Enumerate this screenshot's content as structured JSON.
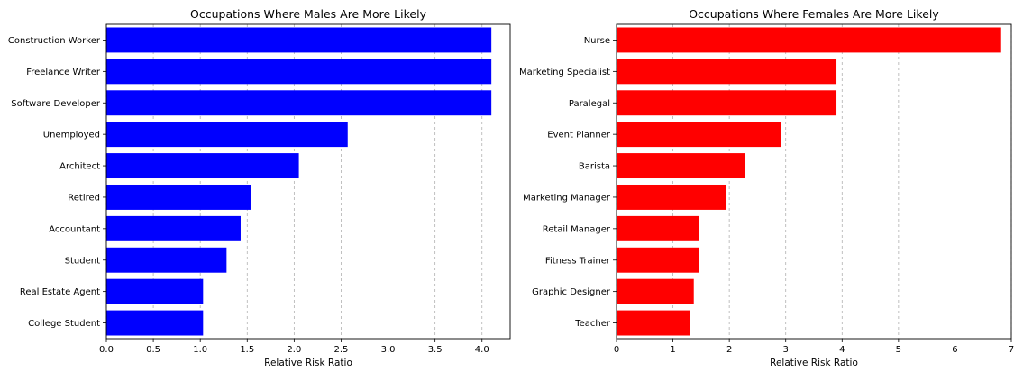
{
  "chart_data": [
    {
      "type": "bar",
      "orientation": "horizontal",
      "title": "Occupations Where Males Are More Likely",
      "xlabel": "Relative Risk Ratio",
      "ylabel": "",
      "color": "#0000ff",
      "xlim": [
        0,
        4.3
      ],
      "xticks": [
        "0.0",
        "0.5",
        "1.0",
        "1.5",
        "2.0",
        "2.5",
        "3.0",
        "3.5",
        "4.0"
      ],
      "grid": "vertical dashed",
      "categories": [
        "Construction Worker",
        "Freelance Writer",
        "Software Developer",
        "Unemployed",
        "Architect",
        "Retired",
        "Accountant",
        "Student",
        "Real Estate Agent",
        "College Student"
      ],
      "values": [
        4.1,
        4.1,
        4.1,
        2.57,
        2.05,
        1.54,
        1.43,
        1.28,
        1.03,
        1.03
      ]
    },
    {
      "type": "bar",
      "orientation": "horizontal",
      "title": "Occupations Where Females Are More Likely",
      "xlabel": "Relative Risk Ratio",
      "ylabel": "",
      "color": "#ff0000",
      "xlim": [
        0,
        7.0
      ],
      "xticks": [
        "0",
        "1",
        "2",
        "3",
        "4",
        "5",
        "6",
        "7"
      ],
      "grid": "vertical dashed",
      "categories": [
        "Nurse",
        "Marketing Specialist",
        "Paralegal",
        "Event Planner",
        "Barista",
        "Marketing Manager",
        "Retail Manager",
        "Fitness Trainer",
        "Graphic Designer",
        "Teacher"
      ],
      "values": [
        6.82,
        3.9,
        3.9,
        2.92,
        2.27,
        1.95,
        1.46,
        1.46,
        1.37,
        1.3
      ]
    }
  ]
}
